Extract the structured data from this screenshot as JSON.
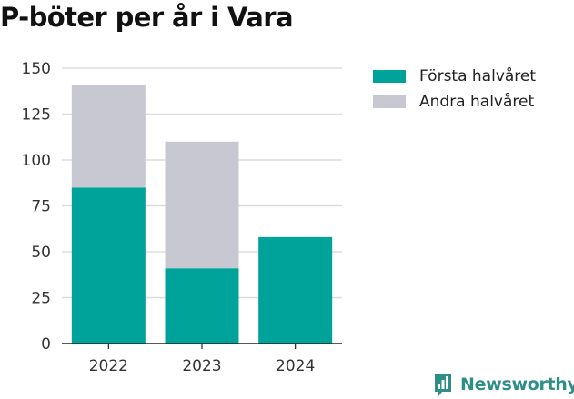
{
  "title": "P-böter per år i Vara",
  "colors": {
    "first": "#00a39a",
    "second": "#c8c8d3",
    "grid": "#dddddd",
    "axis": "#222222",
    "brand": "#2d8f87"
  },
  "legend": {
    "first": "Första halvåret",
    "second": "Andra halvåret"
  },
  "brand": {
    "name": "Newsworthy",
    "icon": "newsworthy-logo-icon"
  },
  "chart_data": {
    "type": "bar",
    "stacked": true,
    "title": "P-böter per år i Vara",
    "categories": [
      "2022",
      "2023",
      "2024"
    ],
    "series": [
      {
        "name": "Första halvåret",
        "values": [
          85,
          41,
          58
        ]
      },
      {
        "name": "Andra halvåret",
        "values": [
          56,
          69,
          0
        ]
      }
    ],
    "ylim": [
      0,
      150
    ],
    "yticks": [
      "0",
      "25",
      "50",
      "75",
      "100",
      "125",
      "150"
    ],
    "grid": true,
    "legend_position": "right"
  }
}
